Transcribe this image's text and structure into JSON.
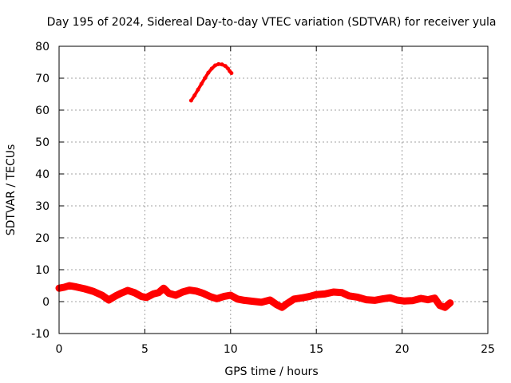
{
  "chart_data": {
    "type": "scatter",
    "title": "Day 195 of 2024, Sidereal Day-to-day VTEC variation (SDTVAR) for receiver yula",
    "xlabel": "GPS time / hours",
    "ylabel": "SDTVAR / TECUs",
    "xlim": [
      0,
      25
    ],
    "ylim": [
      -10,
      80
    ],
    "xticks": [
      0,
      5,
      10,
      15,
      20,
      25
    ],
    "yticks": [
      -10,
      0,
      10,
      20,
      30,
      40,
      50,
      60,
      70,
      80
    ],
    "grid": true,
    "marker_color": "#ff0000",
    "series": [
      {
        "name": "SDTVAR band",
        "points": [
          [
            0.0,
            4.2
          ],
          [
            0.3,
            4.5
          ],
          [
            0.6,
            5.0
          ],
          [
            1.0,
            4.6
          ],
          [
            1.5,
            4.0
          ],
          [
            2.0,
            3.2
          ],
          [
            2.5,
            2.0
          ],
          [
            2.9,
            0.5
          ],
          [
            3.3,
            1.8
          ],
          [
            3.6,
            2.6
          ],
          [
            4.0,
            3.5
          ],
          [
            4.4,
            2.8
          ],
          [
            4.8,
            1.6
          ],
          [
            5.1,
            1.3
          ],
          [
            5.5,
            2.4
          ],
          [
            5.8,
            2.8
          ],
          [
            6.1,
            4.2
          ],
          [
            6.4,
            2.6
          ],
          [
            6.8,
            2.0
          ],
          [
            7.2,
            3.0
          ],
          [
            7.6,
            3.6
          ],
          [
            8.0,
            3.3
          ],
          [
            8.4,
            2.6
          ],
          [
            8.8,
            1.6
          ],
          [
            9.2,
            0.9
          ],
          [
            9.6,
            1.6
          ],
          [
            10.0,
            2.0
          ],
          [
            10.4,
            0.8
          ],
          [
            10.8,
            0.4
          ],
          [
            11.3,
            0.1
          ],
          [
            11.8,
            -0.2
          ],
          [
            12.3,
            0.5
          ],
          [
            12.7,
            -1.0
          ],
          [
            13.0,
            -1.8
          ],
          [
            13.3,
            -0.6
          ],
          [
            13.7,
            0.8
          ],
          [
            14.2,
            1.2
          ],
          [
            14.6,
            1.6
          ],
          [
            15.0,
            2.2
          ],
          [
            15.5,
            2.4
          ],
          [
            16.0,
            3.0
          ],
          [
            16.5,
            2.8
          ],
          [
            16.9,
            1.8
          ],
          [
            17.4,
            1.4
          ],
          [
            17.9,
            0.6
          ],
          [
            18.4,
            0.4
          ],
          [
            18.9,
            0.9
          ],
          [
            19.3,
            1.2
          ],
          [
            19.7,
            0.5
          ],
          [
            20.1,
            0.2
          ],
          [
            20.6,
            0.3
          ],
          [
            21.1,
            1.0
          ],
          [
            21.5,
            0.6
          ],
          [
            21.9,
            1.1
          ],
          [
            22.2,
            -1.2
          ],
          [
            22.5,
            -1.8
          ],
          [
            22.8,
            -0.4
          ]
        ]
      },
      {
        "name": "SDTVAR peak",
        "points": [
          [
            7.7,
            63.0
          ],
          [
            7.9,
            64.6
          ],
          [
            8.1,
            66.4
          ],
          [
            8.3,
            68.2
          ],
          [
            8.5,
            70.0
          ],
          [
            8.7,
            71.7
          ],
          [
            8.9,
            73.0
          ],
          [
            9.1,
            74.0
          ],
          [
            9.3,
            74.4
          ],
          [
            9.5,
            74.3
          ],
          [
            9.7,
            73.8
          ],
          [
            9.85,
            73.0
          ],
          [
            9.95,
            72.2
          ],
          [
            10.05,
            71.6
          ]
        ]
      }
    ]
  }
}
